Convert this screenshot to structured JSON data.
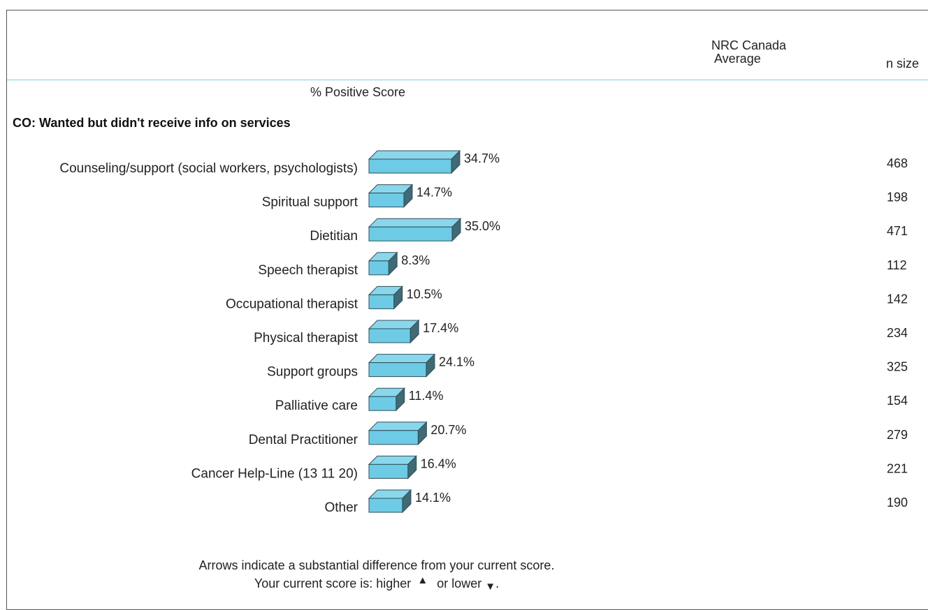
{
  "header": {
    "avg_line1": "NRC Canada",
    "avg_line2": "Average",
    "nsize": "n size"
  },
  "pct_heading": "% Positive Score",
  "section_title": "CO: Wanted but didn't receive info on services",
  "chart_data": {
    "type": "bar",
    "orientation": "horizontal",
    "title": "CO: Wanted but didn't receive info on services",
    "xlabel": "% Positive Score",
    "categories": [
      "Counseling/support (social workers, psychologists)",
      "Spiritual support",
      "Dietitian",
      "Speech therapist",
      "Occupational therapist",
      "Physical therapist",
      "Support groups",
      "Palliative care",
      "Dental Practitioner",
      "Cancer Help-Line (13 11 20)",
      "Other"
    ],
    "values": [
      34.7,
      14.7,
      35.0,
      8.3,
      10.5,
      17.4,
      24.1,
      11.4,
      20.7,
      16.4,
      14.1
    ],
    "value_labels": [
      "34.7%",
      "14.7%",
      "35.0%",
      "8.3%",
      "10.5%",
      "17.4%",
      "24.1%",
      "11.4%",
      "20.7%",
      "16.4%",
      "14.1%"
    ],
    "n_sizes": [
      "468",
      "198",
      "471",
      "112",
      "142",
      "234",
      "325",
      "154",
      "279",
      "221",
      "190"
    ],
    "bar_color": "#6dcbe6",
    "bar_side_color": "#3f6a76"
  },
  "footer": {
    "line1": "Arrows indicate a substantial difference from your current score.",
    "line2_prefix": "Your current score is: higher",
    "up_arrow": "▲",
    "line2_mid": "or lower",
    "down_arrow": "▼",
    "line2_end": "."
  }
}
